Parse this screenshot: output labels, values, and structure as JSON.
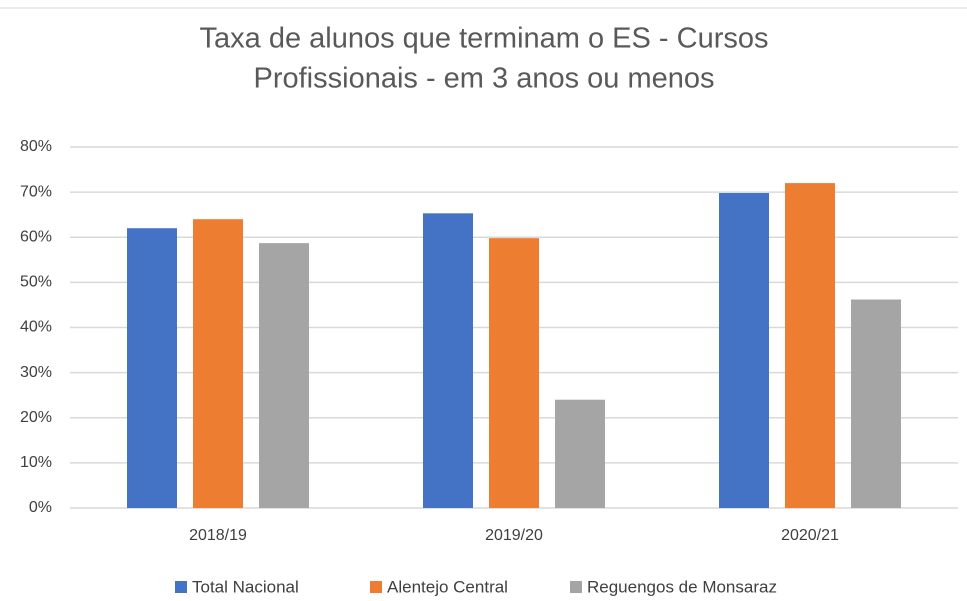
{
  "chart_data": {
    "type": "bar",
    "title": [
      "Taxa de alunos que terminam o ES - Cursos",
      "Profissionais - em 3 anos ou menos"
    ],
    "categories": [
      "2018/19",
      "2019/20",
      "2020/21"
    ],
    "series": [
      {
        "name": "Total Nacional",
        "color": "#4472c4",
        "values": [
          62,
          65.3,
          69.8
        ]
      },
      {
        "name": "Alentejo Central",
        "color": "#ed7d31",
        "values": [
          64,
          59.8,
          72
        ]
      },
      {
        "name": "Reguengos de Monsaraz",
        "color": "#a5a5a5",
        "values": [
          58.7,
          24,
          46.2
        ]
      }
    ],
    "ylim": [
      0,
      80
    ],
    "yticks": [
      {
        "value": 0,
        "label": "0%"
      },
      {
        "value": 10,
        "label": "10%"
      },
      {
        "value": 20,
        "label": "20%"
      },
      {
        "value": 30,
        "label": "30%"
      },
      {
        "value": 40,
        "label": "40%"
      },
      {
        "value": 50,
        "label": "50%"
      },
      {
        "value": 60,
        "label": "60%"
      },
      {
        "value": 70,
        "label": "70%"
      },
      {
        "value": 80,
        "label": "80%"
      }
    ],
    "grid": true,
    "legend": "bottom"
  }
}
